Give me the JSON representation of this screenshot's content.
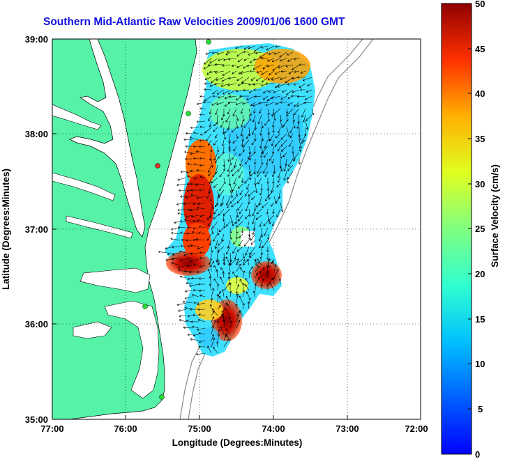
{
  "title": "Southern Mid-Atlantic Raw Velocities 2009/01/06 1600 GMT",
  "xlabel": "Longitude (Degrees:Minutes)",
  "ylabel": "Latitude (Degrees:Minutes)",
  "x_ticks": [
    "77:00",
    "76:00",
    "75:00",
    "74:00",
    "73:00",
    "72:00"
  ],
  "y_ticks": [
    "39:00",
    "38:00",
    "37:00",
    "36:00",
    "35:00"
  ],
  "colorbar": {
    "label": "Surface Velocity (cm/s)",
    "ticks": [
      "50",
      "45",
      "40",
      "35",
      "30",
      "25",
      "20",
      "15",
      "10",
      "5",
      "0"
    ],
    "range": [
      0,
      50
    ]
  },
  "colors": {
    "land": "#55f2a8",
    "title": "#1010e0",
    "station": "#22dd33"
  }
}
